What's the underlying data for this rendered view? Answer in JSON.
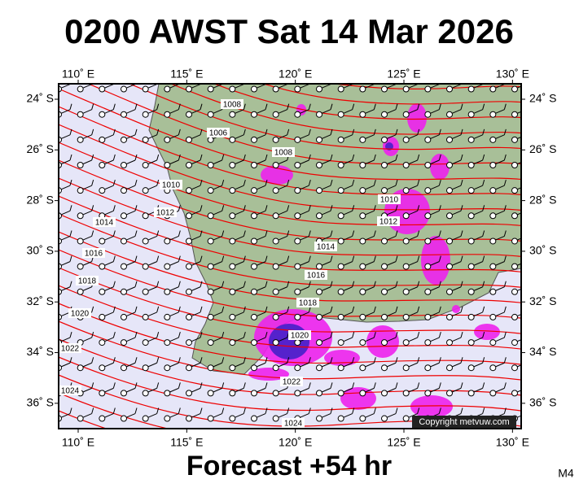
{
  "title": "0200 AWST Sat 14 Mar 2026",
  "subtitle": "Forecast +54 hr",
  "model": "M4",
  "copyright": "Copyright metvuw.com",
  "map": {
    "lon_range": [
      109.1,
      130.4
    ],
    "lat_range": [
      -23.39,
      -37
    ],
    "lon_ticks": [
      {
        "value": 110,
        "label": "110˚ E"
      },
      {
        "value": 115,
        "label": "115˚ E"
      },
      {
        "value": 120,
        "label": "120˚ E"
      },
      {
        "value": 125,
        "label": "125˚ E"
      },
      {
        "value": 130,
        "label": "130˚ E"
      }
    ],
    "lat_ticks": [
      {
        "value": -24,
        "label": "24˚ S"
      },
      {
        "value": -26,
        "label": "26˚ S"
      },
      {
        "value": -28,
        "label": "28˚ S"
      },
      {
        "value": -30,
        "label": "30˚ S"
      },
      {
        "value": -32,
        "label": "32˚ S"
      },
      {
        "value": -34,
        "label": "34˚ S"
      },
      {
        "value": -36,
        "label": "36˚ S"
      }
    ],
    "isobar_labels": [
      1008,
      1006,
      1008,
      1010,
      1012,
      1014,
      1016,
      1018,
      1020,
      1022,
      1024,
      1010,
      1012,
      1014,
      1016,
      1018,
      1020,
      1022,
      1024
    ]
  }
}
